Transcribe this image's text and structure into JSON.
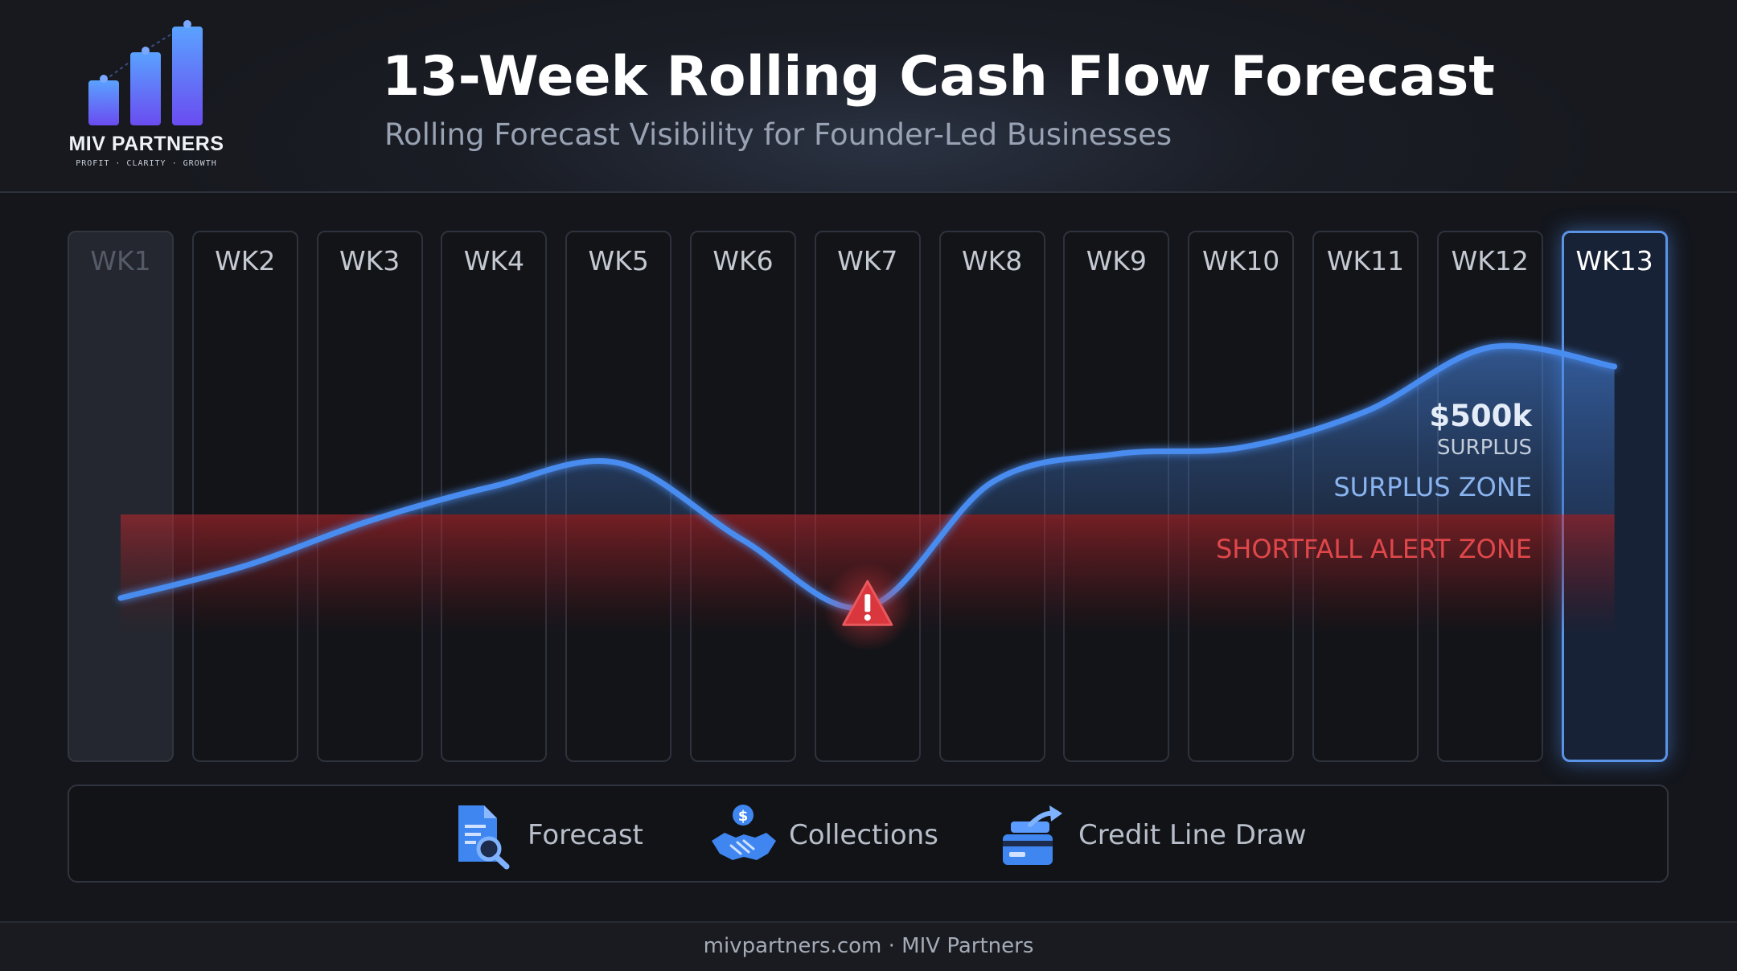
{
  "brand": {
    "name": "MIV PARTNERS",
    "tagline": "PROFIT · CLARITY · GROWTH",
    "colors": {
      "accent": "#4a8cf0",
      "alert": "#d9363e",
      "logo_bar": "#5a5cf5"
    }
  },
  "header": {
    "title": "13-Week Rolling Cash Flow Forecast",
    "subtitle": "Rolling Forecast Visibility for Founder-Led Businesses"
  },
  "chart_data": {
    "type": "line",
    "categories": [
      "WK1",
      "WK2",
      "WK3",
      "WK4",
      "WK5",
      "WK6",
      "WK7",
      "WK8",
      "WK9",
      "WK10",
      "WK11",
      "WK12",
      "WK13"
    ],
    "values": [
      -0.65,
      -0.4,
      -0.05,
      0.22,
      0.4,
      -0.2,
      -0.72,
      0.25,
      0.47,
      0.52,
      0.8,
      1.3,
      1.15
    ],
    "highlight": {
      "current_week": "WK13",
      "faded_week": "WK1",
      "alert_week": "WK7"
    },
    "zones": {
      "surplus": "SURPLUS ZONE",
      "shortfall": "SHORTFALL ALERT ZONE"
    },
    "annotation": {
      "value": "$500k",
      "label": "SURPLUS"
    },
    "ylim": [
      -1.0,
      1.5
    ],
    "grid": false
  },
  "legend": {
    "items": [
      {
        "label": "Forecast",
        "icon": "document-search-icon"
      },
      {
        "label": "Collections",
        "icon": "handshake-dollar-icon"
      },
      {
        "label": "Credit Line Draw",
        "icon": "credit-card-arrow-icon"
      }
    ]
  },
  "footer": {
    "text": "mivpartners.com  ·  MIV Partners"
  }
}
